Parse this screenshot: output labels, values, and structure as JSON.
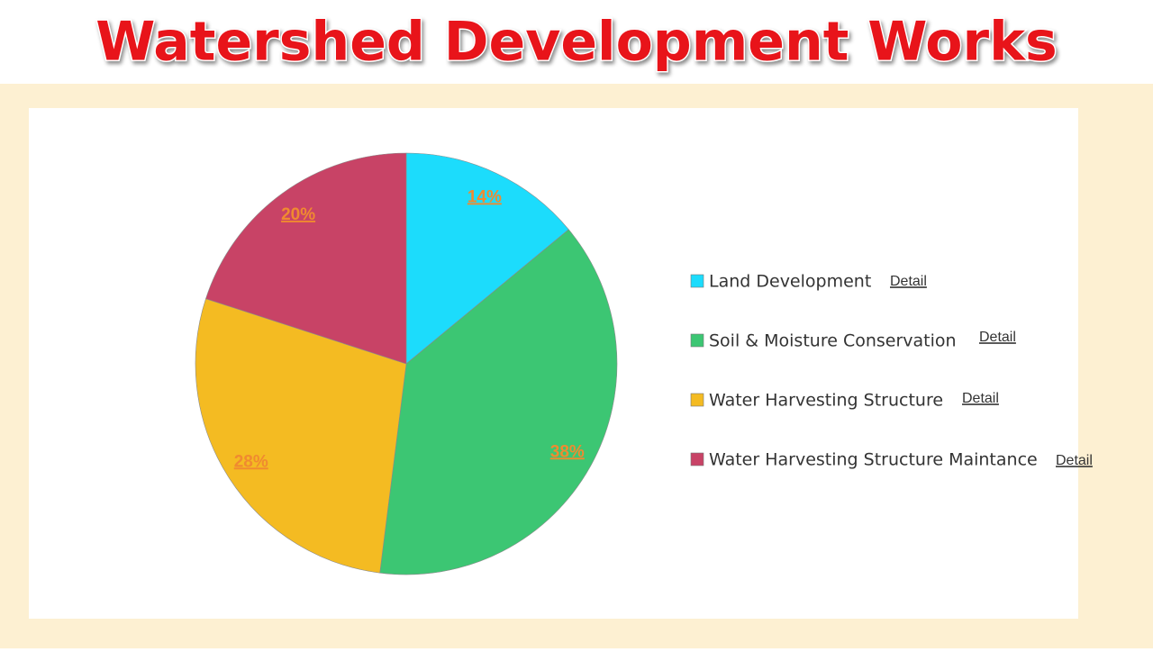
{
  "chart_data": {
    "type": "pie",
    "title": "Watershed Development Works",
    "categories": [
      "Land Development",
      "Soil & Moisture Conservation",
      "Water Harvesting Structure",
      "Water Harvesting Structure Maintance"
    ],
    "values": [
      14,
      38,
      28,
      20
    ],
    "value_labels": [
      "14%",
      "38%",
      "28%",
      "20%"
    ],
    "colors": [
      "#1cdcfc",
      "#3cc673",
      "#f4bb22",
      "#c84366"
    ],
    "legend_links": [
      "Detail",
      "Detail",
      "Detail",
      "Detail"
    ]
  }
}
